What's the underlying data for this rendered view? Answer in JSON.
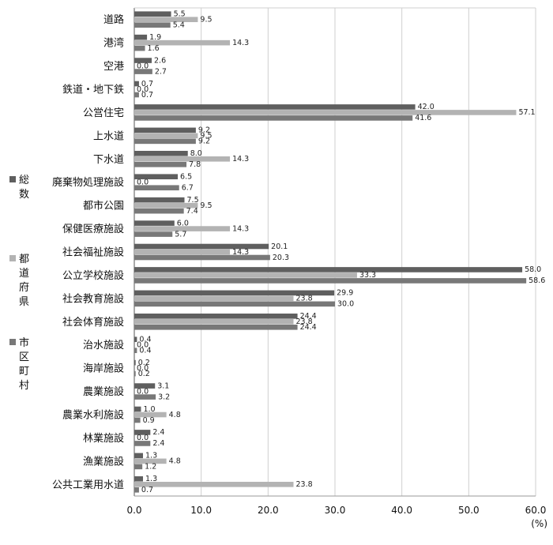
{
  "chart_data": {
    "type": "bar",
    "orientation": "horizontal",
    "unit": "(%)",
    "xlim": [
      0,
      60
    ],
    "xticks": [
      "0.0",
      "10.0",
      "20.0",
      "30.0",
      "40.0",
      "50.0",
      "60.0"
    ],
    "grid": "vertical",
    "legend_position": "left",
    "categories": [
      "道路",
      "港湾",
      "空港",
      "鉄道・地下鉄",
      "公営住宅",
      "上水道",
      "下水道",
      "廃棄物処理施設",
      "都市公園",
      "保健医療施設",
      "社会福祉施設",
      "公立学校施設",
      "社会教育施設",
      "社会体育施設",
      "治水施設",
      "海岸施設",
      "農業施設",
      "農業水利施設",
      "林業施設",
      "漁業施設",
      "公共工業用水道"
    ],
    "series": [
      {
        "name": "総数",
        "color": "#5f5f5f",
        "values": [
          5.5,
          1.9,
          2.6,
          0.7,
          42.0,
          9.2,
          8.0,
          6.5,
          7.5,
          6.0,
          20.1,
          58.0,
          29.9,
          24.4,
          0.4,
          0.2,
          3.1,
          1.0,
          2.4,
          1.3,
          1.3
        ],
        "labels": [
          "5.5",
          "1.9",
          "2.6",
          "0.7",
          "42.0",
          "9.2",
          "8.0",
          "6.5",
          "7.5",
          "6.0",
          "20.1",
          "58.0",
          "29.9",
          "24.4",
          "0.4",
          "0.2",
          "3.1",
          "1.0",
          "2.4",
          "1.3",
          "1.3"
        ]
      },
      {
        "name": "都道府県",
        "color": "#b3b3b3",
        "values": [
          9.5,
          14.3,
          0.0,
          0.0,
          57.1,
          9.5,
          14.3,
          0.0,
          9.5,
          14.3,
          14.3,
          33.3,
          23.8,
          23.8,
          0.0,
          0.0,
          0.0,
          4.8,
          0.0,
          4.8,
          23.8
        ],
        "labels": [
          "9.5",
          "14.3",
          "0.0",
          "0.0",
          "57.1",
          "9.5",
          "14.3",
          "0.0",
          "9.5",
          "14.3",
          "14.3",
          "33.3",
          "23.8",
          "23.8",
          "0.0",
          "0.0",
          "0.0",
          "4.8",
          "0.0",
          "4.8",
          "23.8"
        ]
      },
      {
        "name": "市区町村",
        "color": "#787878",
        "values": [
          5.4,
          1.6,
          2.7,
          0.7,
          41.6,
          9.2,
          7.8,
          6.7,
          7.4,
          5.7,
          20.3,
          58.6,
          30.0,
          24.4,
          0.4,
          0.2,
          3.2,
          0.9,
          2.4,
          1.2,
          0.7
        ],
        "labels": [
          "5.4",
          "1.6",
          "2.7",
          "0.7",
          "41.6",
          "9.2",
          "7.8",
          "6.7",
          "7.4",
          "5.7",
          "20.3",
          "58.6",
          "30.0",
          "24.4",
          "0.4",
          "0.2",
          "3.2",
          "0.9",
          "2.4",
          "1.2",
          "0.7"
        ]
      }
    ]
  }
}
